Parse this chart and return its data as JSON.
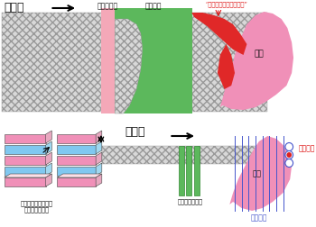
{
  "bg_color": "#ffffff",
  "hatch_color": "#c0c0c0",
  "collimator_color": "#f4a8b8",
  "bolus_color": "#5cb85c",
  "bolus_dark": "#3a9a3a",
  "tumor_pink": "#f090b8",
  "tumor_red": "#e02828",
  "scanning_blue": "#80c8f0",
  "scanning_pink": "#f090b8",
  "range_shifter_color": "#5cb85c",
  "spot_red": "#dd2222",
  "slice_blue": "#4455cc",
  "text_red": "#dd1111",
  "text_blue": "#4455cc",
  "text_black": "#111111",
  "label_beam": "ビーム",
  "label_collimator": "コリメータ",
  "label_bolus": "ボーラス",
  "label_normal_dose": "“正常組織への付与線量”",
  "label_tumor": "腫瘤",
  "label_scanning_magnet": "スキャニング電磁石",
  "label_scanning_sub": "（水平・垂直）",
  "label_range_shifter": "レンジシフター",
  "label_spot": "スポット",
  "label_slice": "スライス"
}
